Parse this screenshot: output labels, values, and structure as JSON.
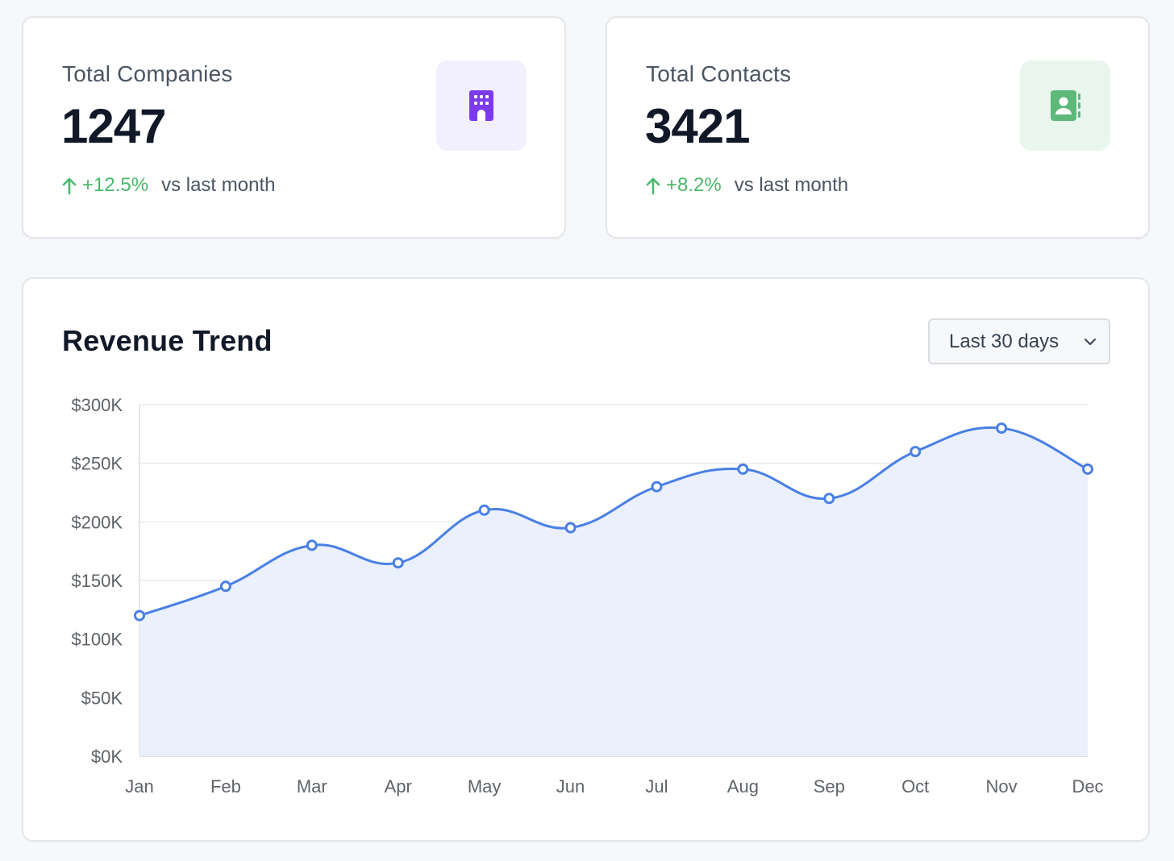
{
  "stats": {
    "companies": {
      "title": "Total Companies",
      "value": "1247",
      "change": "+12.5%",
      "compare": "vs last month",
      "icon": "building-icon",
      "icon_color": "#7c3aed"
    },
    "contacts": {
      "title": "Total Contacts",
      "value": "3421",
      "change": "+8.2%",
      "compare": "vs last month",
      "icon": "contact-book-icon",
      "icon_color": "#5cb97a"
    }
  },
  "revenue_card": {
    "title": "Revenue Trend",
    "range_select": {
      "selected": "Last 30 days"
    }
  },
  "colors": {
    "accent": "#4a7fe5",
    "positive": "#4bb86a",
    "area_fill": "#eaf0fc"
  },
  "chart_data": {
    "type": "area",
    "categories": [
      "Jan",
      "Feb",
      "Mar",
      "Apr",
      "May",
      "Jun",
      "Jul",
      "Aug",
      "Sep",
      "Oct",
      "Nov",
      "Dec"
    ],
    "series": [
      {
        "values": [
          120000,
          145000,
          180000,
          165000,
          210000,
          195000,
          230000,
          245000,
          220000,
          260000,
          280000,
          245000
        ]
      }
    ],
    "yticks": [
      0,
      50000,
      100000,
      150000,
      200000,
      250000,
      300000
    ],
    "ytick_labels": [
      "$0K",
      "$50K",
      "$100K",
      "$150K",
      "$200K",
      "$250K",
      "$300K"
    ],
    "ylim": [
      0,
      300000
    ],
    "grid": true,
    "markers": true,
    "smooth": true
  }
}
